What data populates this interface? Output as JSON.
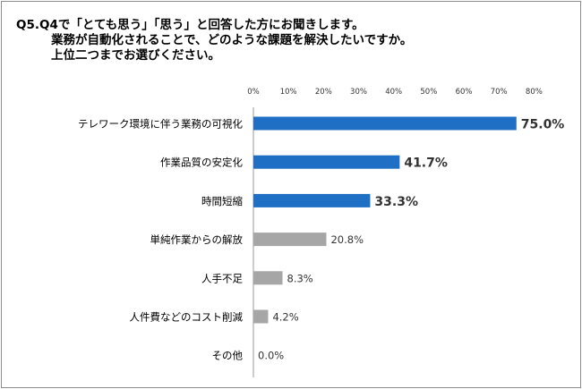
{
  "title_lines": [
    "Q5.Q4で「とても思う」「思う」と回答した方にお聞きします。",
    "業務が自動化されることで、どのような課題を解決したいですか。",
    "上位二つまでお選びください。"
  ],
  "colors": {
    "highlight": "#1F6FC5",
    "normal": "#A6A6A6",
    "axis": "#999999",
    "text": "#333333"
  },
  "chart_data": {
    "type": "bar",
    "orientation": "horizontal",
    "title": "",
    "xlabel": "",
    "ylabel": "",
    "xlim": [
      0,
      80
    ],
    "x_ticks": [
      "0%",
      "10%",
      "20%",
      "30%",
      "40%",
      "50%",
      "60%",
      "70%",
      "80%"
    ],
    "x_tick_values": [
      0,
      10,
      20,
      30,
      40,
      50,
      60,
      70,
      80
    ],
    "categories": [
      "テレワーク環境に伴う業務の可視化",
      "作業品質の安定化",
      "時間短縮",
      "単純作業からの解放",
      "人手不足",
      "人件費などのコスト削減",
      "その他"
    ],
    "values": [
      75.0,
      41.7,
      33.3,
      20.8,
      8.3,
      4.2,
      0.0
    ],
    "labels": [
      "75.0%",
      "41.7%",
      "33.3%",
      "20.8%",
      "8.3%",
      "4.2%",
      "0.0%"
    ],
    "highlighted": [
      true,
      true,
      true,
      false,
      false,
      false,
      false
    ],
    "grid": false,
    "legend": "none"
  }
}
